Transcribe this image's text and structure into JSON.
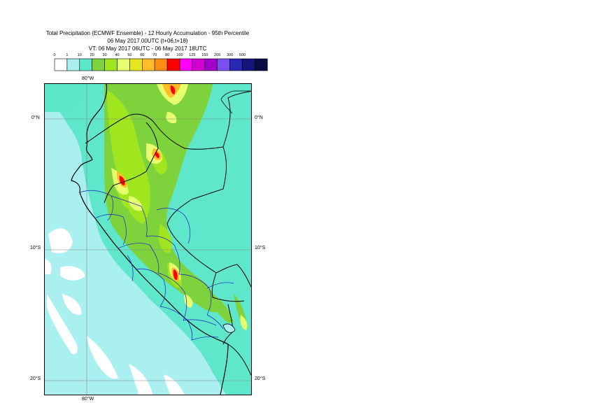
{
  "title": {
    "line1": "Total Precipitation (ECMWF Ensemble) - 12 Hourly Accumulation - 95th Percentile",
    "line2": "06 May 2017 00UTC (t+06,t+18)",
    "line3": "VT: 06 May 2017 06UTC - 06 May 2017 18UTC"
  },
  "legend": {
    "thresholds": [
      "0",
      "1",
      "10",
      "20",
      "30",
      "40",
      "50",
      "60",
      "70",
      "80",
      "100",
      "125",
      "150",
      "200",
      "300",
      "500"
    ],
    "colors": [
      "#ffffff",
      "#aaf0f0",
      "#5ae6c8",
      "#7ed23c",
      "#a0e61e",
      "#e6ff6e",
      "#e6e61e",
      "#ffbe28",
      "#ff8c14",
      "#ff0000",
      "#ff00ff",
      "#d200d2",
      "#a000c8",
      "#7850f0",
      "#2828b4",
      "#14147a",
      "#0a0a46"
    ]
  },
  "axes": {
    "lon_top": "80°W",
    "lon_bottom": "80°W",
    "lat_labels": [
      "0°N",
      "10°S",
      "20°S"
    ]
  }
}
